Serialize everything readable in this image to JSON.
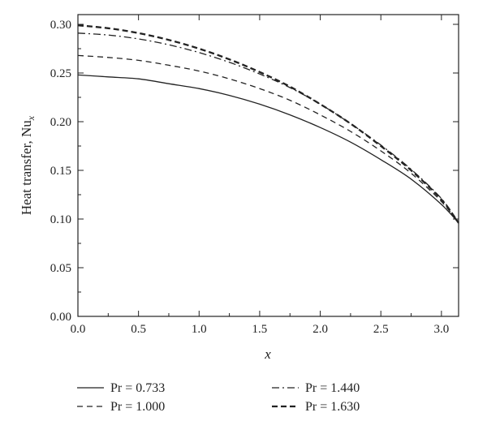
{
  "chart_data": {
    "type": "line",
    "xlabel": "x",
    "ylabel": {
      "text": "Heat transfer, Nu",
      "subscript": "x"
    },
    "xlim": [
      0,
      3.14159
    ],
    "ylim": [
      0,
      0.31
    ],
    "xticks": [
      "0.0",
      "0.5",
      "1.0",
      "1.5",
      "2.0",
      "2.5",
      "3.0"
    ],
    "yticks": [
      "0.00",
      "0.05",
      "0.10",
      "0.15",
      "0.20",
      "0.25",
      "0.30"
    ],
    "legend_position": "bottom",
    "series": [
      {
        "name": "Pr = 0.733",
        "style": "solid",
        "x": [
          0,
          0.25,
          0.5,
          0.75,
          1.0,
          1.25,
          1.5,
          1.75,
          2.0,
          2.25,
          2.5,
          2.75,
          3.0,
          3.14159
        ],
        "y": [
          0.248,
          0.246,
          0.244,
          0.239,
          0.234,
          0.227,
          0.218,
          0.207,
          0.194,
          0.179,
          0.161,
          0.141,
          0.115,
          0.096
        ]
      },
      {
        "name": "Pr = 1.000",
        "style": "dashed",
        "x": [
          0,
          0.25,
          0.5,
          0.75,
          1.0,
          1.25,
          1.5,
          1.75,
          2.0,
          2.25,
          2.5,
          2.75,
          3.0,
          3.14159
        ],
        "y": [
          0.268,
          0.266,
          0.263,
          0.258,
          0.252,
          0.244,
          0.234,
          0.222,
          0.207,
          0.19,
          0.17,
          0.147,
          0.118,
          0.096
        ]
      },
      {
        "name": "Pr = 1.440",
        "style": "dashdot",
        "x": [
          0,
          0.25,
          0.5,
          0.75,
          1.0,
          1.25,
          1.5,
          1.75,
          2.0,
          2.25,
          2.5,
          2.75,
          3.0,
          3.14159
        ],
        "y": [
          0.291,
          0.289,
          0.285,
          0.279,
          0.271,
          0.261,
          0.249,
          0.235,
          0.218,
          0.198,
          0.176,
          0.151,
          0.121,
          0.096
        ]
      },
      {
        "name": "Pr = 1.630",
        "style": "boldDashed",
        "x": [
          0,
          0.25,
          0.5,
          0.75,
          1.0,
          1.25,
          1.5,
          1.75,
          2.0,
          2.25,
          2.5,
          2.75,
          3.0,
          3.14159
        ],
        "y": [
          0.299,
          0.296,
          0.291,
          0.284,
          0.275,
          0.264,
          0.251,
          0.236,
          0.218,
          0.198,
          0.175,
          0.15,
          0.12,
          0.096
        ]
      }
    ]
  }
}
